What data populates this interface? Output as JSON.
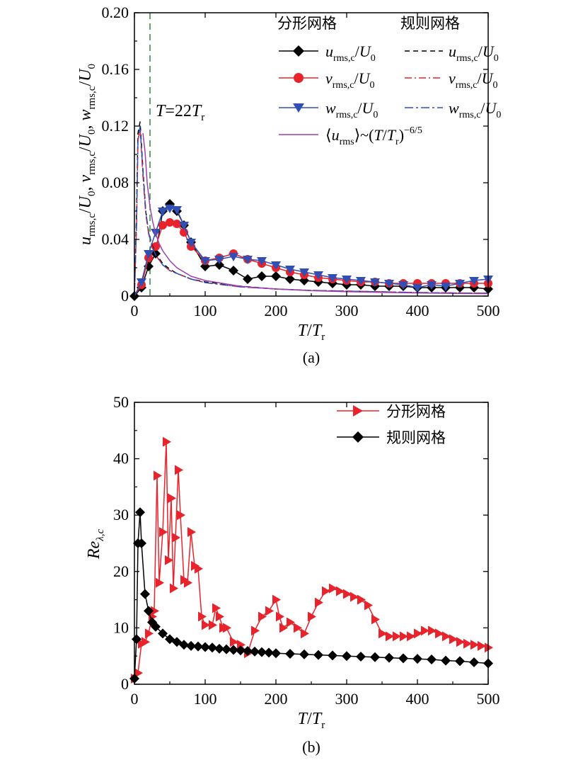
{
  "chart_data": [
    {
      "type": "line",
      "panel_label": "(a)",
      "xlabel": "T/T_r",
      "ylabel": "u_rms,c/U_0, v_rms,c/U_0, w_rms,c/U_0",
      "xlim": [
        0,
        500
      ],
      "ylim": [
        0,
        0.2
      ],
      "xticks": [
        "0",
        "100",
        "200",
        "300",
        "400",
        "500"
      ],
      "yticks": [
        "0",
        "0.04",
        "0.08",
        "0.12",
        "0.16",
        "0.20"
      ],
      "legend_headers": [
        "分形网格",
        "规则网格"
      ],
      "annotation": "T=22T_r",
      "annotation_x": 22,
      "grid": false,
      "legend_placement": "top-right",
      "series": [
        {
          "name": "u_rms,c/U_0",
          "group": "分形网格",
          "color": "#000000",
          "marker": "diamond",
          "x": [
            0,
            10,
            20,
            30,
            40,
            50,
            60,
            70,
            80,
            100,
            120,
            140,
            160,
            180,
            200,
            220,
            240,
            260,
            280,
            300,
            320,
            340,
            360,
            380,
            400,
            420,
            440,
            460,
            480,
            500
          ],
          "y": [
            0,
            0.006,
            0.021,
            0.03,
            0.06,
            0.065,
            0.06,
            0.05,
            0.038,
            0.021,
            0.022,
            0.018,
            0.012,
            0.014,
            0.014,
            0.012,
            0.011,
            0.01,
            0.009,
            0.008,
            0.008,
            0.007,
            0.007,
            0.007,
            0.006,
            0.006,
            0.006,
            0.006,
            0.006,
            0.005
          ]
        },
        {
          "name": "v_rms,c/U_0",
          "group": "分形网格",
          "color": "#e8232b",
          "marker": "circle",
          "x": [
            0,
            10,
            20,
            30,
            40,
            50,
            60,
            70,
            80,
            100,
            120,
            140,
            160,
            180,
            200,
            220,
            240,
            260,
            280,
            300,
            320,
            340,
            360,
            380,
            400,
            420,
            440,
            460,
            480,
            500
          ],
          "y": [
            0,
            0.008,
            0.027,
            0.035,
            0.05,
            0.052,
            0.051,
            0.045,
            0.035,
            0.025,
            0.027,
            0.03,
            0.026,
            0.023,
            0.02,
            0.017,
            0.015,
            0.013,
            0.012,
            0.011,
            0.01,
            0.01,
            0.009,
            0.009,
            0.009,
            0.009,
            0.009,
            0.009,
            0.009,
            0.009
          ]
        },
        {
          "name": "w_rms,c/U_0",
          "group": "分形网格",
          "color": "#2f4fb5",
          "marker": "triangle-down",
          "x": [
            0,
            10,
            20,
            30,
            40,
            50,
            60,
            70,
            80,
            100,
            120,
            140,
            160,
            180,
            200,
            220,
            240,
            260,
            280,
            300,
            320,
            340,
            360,
            380,
            400,
            420,
            440,
            460,
            480,
            500
          ],
          "y": [
            0,
            0.01,
            0.03,
            0.045,
            0.06,
            0.062,
            0.061,
            0.05,
            0.038,
            0.025,
            0.026,
            0.028,
            0.026,
            0.025,
            0.022,
            0.019,
            0.017,
            0.015,
            0.013,
            0.012,
            0.011,
            0.01,
            0.009,
            0.008,
            0.006,
            0.008,
            0.007,
            0.009,
            0.011,
            0.012
          ]
        },
        {
          "name": "u_rms,c/U_0",
          "group": "规则网格",
          "color": "#000000",
          "dash": "7,5",
          "x": [
            0,
            3,
            5,
            8,
            12,
            16,
            20,
            25,
            30,
            40,
            50,
            60,
            80,
            100,
            150,
            200,
            250,
            300,
            350,
            400,
            450,
            500
          ],
          "y": [
            0,
            0.06,
            0.115,
            0.123,
            0.09,
            0.06,
            0.045,
            0.036,
            0.03,
            0.023,
            0.019,
            0.016,
            0.012,
            0.01,
            0.007,
            0.005,
            0.004,
            0.0035,
            0.003,
            0.0025,
            0.0022,
            0.002
          ]
        },
        {
          "name": "v_rms,c/U_0",
          "group": "规则网格",
          "color": "#e8232b",
          "dash": "10,4,2,4",
          "x": [
            0,
            3,
            5,
            8,
            12,
            16,
            20,
            25,
            30,
            40,
            50,
            60,
            80,
            100,
            150,
            200,
            250,
            300,
            350,
            400,
            450,
            500
          ],
          "y": [
            0,
            0.05,
            0.11,
            0.118,
            0.085,
            0.058,
            0.044,
            0.035,
            0.029,
            0.022,
            0.018,
            0.016,
            0.012,
            0.0095,
            0.0065,
            0.005,
            0.004,
            0.0035,
            0.003,
            0.0025,
            0.0022,
            0.002
          ]
        },
        {
          "name": "w_rms,c/U_0",
          "group": "规则网格",
          "color": "#2f4fb5",
          "dash": "12,4,3,4",
          "x": [
            0,
            3,
            5,
            8,
            12,
            16,
            20,
            25,
            30,
            40,
            50,
            60,
            80,
            100,
            150,
            200,
            250,
            300,
            350,
            400,
            450,
            500
          ],
          "y": [
            0,
            0.05,
            0.11,
            0.12,
            0.088,
            0.06,
            0.045,
            0.035,
            0.029,
            0.022,
            0.018,
            0.016,
            0.012,
            0.0095,
            0.0065,
            0.005,
            0.004,
            0.0035,
            0.003,
            0.0025,
            0.0022,
            0.002
          ]
        },
        {
          "name": "⟨u_rms⟩~(T/T_r)^−6/5",
          "group": "",
          "color": "#9b3fae",
          "x": [
            12,
            15,
            18,
            22,
            26,
            30,
            35,
            40,
            50,
            60,
            80,
            100,
            150,
            200,
            250,
            300,
            350,
            400,
            450,
            500
          ],
          "y": [
            0.115,
            0.102,
            0.08,
            0.063,
            0.052,
            0.044,
            0.037,
            0.032,
            0.025,
            0.02,
            0.014,
            0.011,
            0.0069,
            0.005,
            0.0038,
            0.0031,
            0.0026,
            0.0022,
            0.0019,
            0.0017
          ]
        }
      ]
    },
    {
      "type": "line",
      "panel_label": "(b)",
      "xlabel": "T/T_r",
      "ylabel": "Re_λ,c",
      "xlim": [
        0,
        500
      ],
      "ylim": [
        0,
        50
      ],
      "xticks": [
        "0",
        "100",
        "200",
        "300",
        "400",
        "500"
      ],
      "yticks": [
        "0",
        "10",
        "20",
        "30",
        "40",
        "50"
      ],
      "grid": false,
      "legend_placement": "top-right",
      "series": [
        {
          "name": "分形网格",
          "color": "#e8232b",
          "marker": "triangle-right",
          "x": [
            0,
            5,
            10,
            15,
            20,
            25,
            28,
            32,
            35,
            40,
            45,
            48,
            52,
            55,
            58,
            62,
            65,
            70,
            75,
            80,
            85,
            90,
            95,
            100,
            110,
            115,
            120,
            125,
            130,
            140,
            150,
            160,
            170,
            180,
            190,
            200,
            205,
            210,
            220,
            230,
            240,
            250,
            260,
            270,
            280,
            290,
            300,
            310,
            320,
            330,
            340,
            350,
            360,
            370,
            380,
            390,
            400,
            410,
            420,
            430,
            440,
            450,
            460,
            470,
            480,
            490,
            500
          ],
          "y": [
            1,
            2,
            7.2,
            7.5,
            9,
            12,
            13,
            37,
            18,
            27,
            43,
            22,
            33,
            17,
            26,
            38,
            30,
            18.5,
            18,
            27,
            21,
            20.5,
            12,
            10.5,
            10.5,
            13.5,
            12,
            10,
            10,
            7.5,
            7,
            5.5,
            9.5,
            12,
            13,
            15,
            12,
            10,
            11,
            10,
            9,
            12,
            14.5,
            16.5,
            17,
            16.5,
            16,
            15.5,
            15,
            14,
            11.5,
            9,
            8.5,
            8.5,
            8.5,
            8.5,
            9,
            9.5,
            9.5,
            9,
            8.5,
            8,
            7.5,
            7.2,
            7,
            6.8,
            6.5
          ]
        },
        {
          "name": "规则网格",
          "color": "#000000",
          "marker": "diamond",
          "x": [
            0,
            3,
            5,
            8,
            10,
            15,
            20,
            25,
            30,
            40,
            50,
            60,
            70,
            80,
            90,
            100,
            110,
            120,
            130,
            140,
            150,
            160,
            170,
            180,
            190,
            200,
            220,
            240,
            260,
            280,
            300,
            320,
            340,
            360,
            380,
            400,
            420,
            440,
            460,
            480,
            500
          ],
          "y": [
            1,
            8,
            25,
            30.5,
            25,
            16,
            13,
            11,
            10.2,
            9,
            8,
            7.5,
            7,
            6.8,
            6.7,
            6.6,
            6.5,
            6.3,
            6.2,
            6.1,
            6,
            5.9,
            5.8,
            5.7,
            5.6,
            5.5,
            5.4,
            5.3,
            5.2,
            5.1,
            5,
            4.9,
            4.8,
            4.7,
            4.6,
            4.5,
            4.4,
            4.2,
            4.1,
            3.9,
            3.7
          ]
        }
      ]
    }
  ]
}
